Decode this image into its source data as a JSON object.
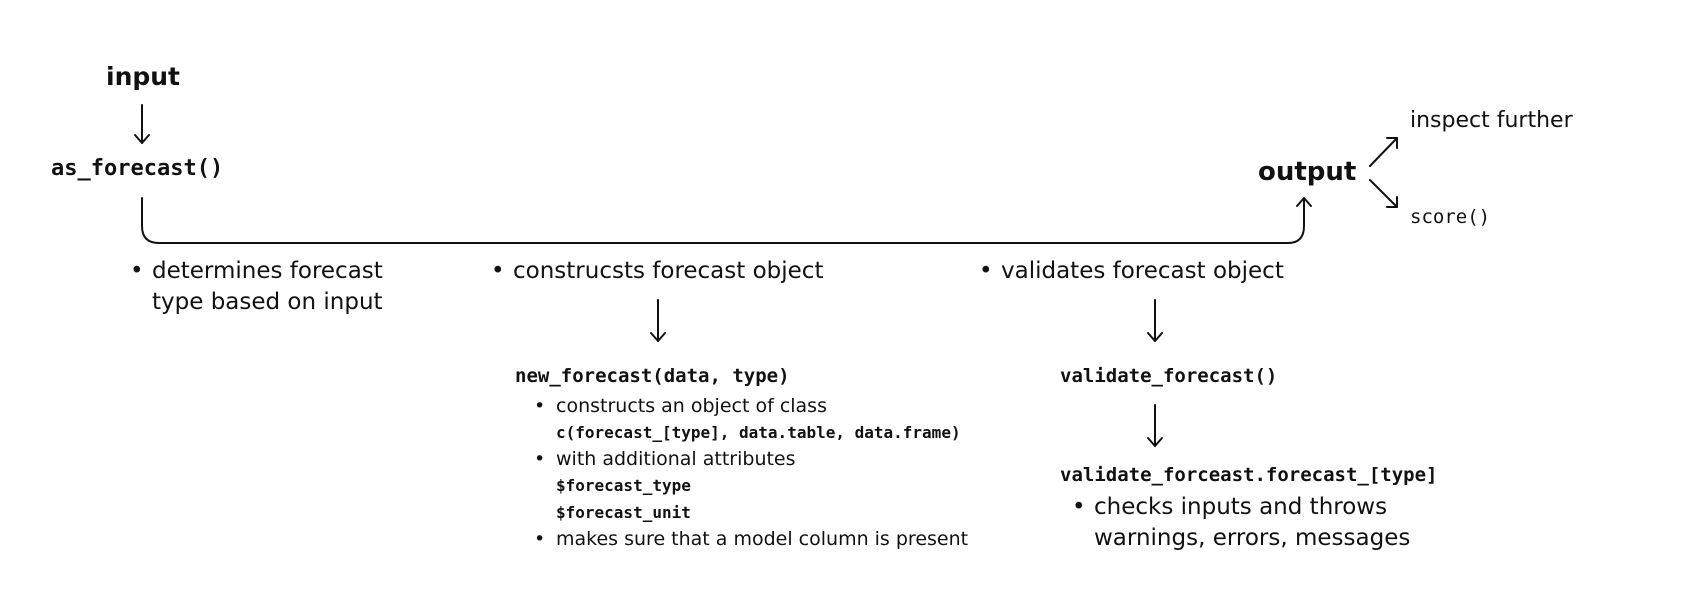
{
  "nodes": {
    "input": "input",
    "as_forecast": "as_forecast()",
    "output": "output",
    "inspect": "inspect further",
    "score": "score()"
  },
  "step1": {
    "lines": [
      "determines forecast",
      "type based on input"
    ]
  },
  "step2": {
    "bullet": "construcsts forecast object",
    "fn": "new_forecast(data, type)",
    "items": [
      {
        "text": "constructs an object of class",
        "code": [
          "c(forecast_[type], data.table, data.frame)"
        ]
      },
      {
        "text": "with additional attributes",
        "code": [
          "$forecast_type",
          "$forecast_unit"
        ]
      },
      {
        "text": "makes sure that a model column is present",
        "code": []
      }
    ]
  },
  "step3": {
    "bullet": "validates forecast object",
    "fn1": "validate_forecast()",
    "fn2": "validate_forceast.forecast_[type]",
    "lines": [
      "checks inputs and throws",
      "warnings, errors, messages"
    ]
  }
}
